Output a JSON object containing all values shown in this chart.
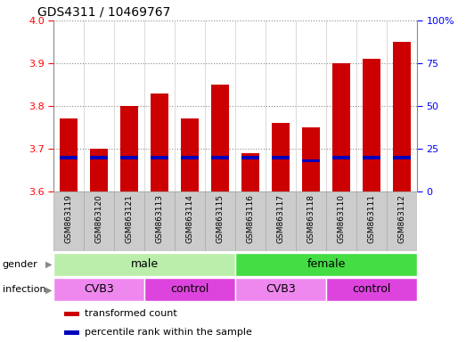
{
  "title": "GDS4311 / 10469767",
  "samples": [
    "GSM863119",
    "GSM863120",
    "GSM863121",
    "GSM863113",
    "GSM863114",
    "GSM863115",
    "GSM863116",
    "GSM863117",
    "GSM863118",
    "GSM863110",
    "GSM863111",
    "GSM863112"
  ],
  "transformed_counts": [
    3.77,
    3.7,
    3.8,
    3.83,
    3.77,
    3.85,
    3.69,
    3.76,
    3.75,
    3.9,
    3.91,
    3.95
  ],
  "percentile_ranks": [
    20,
    20,
    20,
    20,
    20,
    20,
    20,
    20,
    18,
    20,
    20,
    20
  ],
  "y_min": 3.6,
  "y_max": 4.0,
  "y_ticks": [
    3.6,
    3.7,
    3.8,
    3.9,
    4.0
  ],
  "right_y_ticks": [
    0,
    25,
    50,
    75,
    100
  ],
  "bar_color": "#cc0000",
  "percentile_color": "#0000bb",
  "gender_groups": [
    {
      "label": "male",
      "start": 0,
      "end": 6,
      "color": "#bbeeaa"
    },
    {
      "label": "female",
      "start": 6,
      "end": 12,
      "color": "#44dd44"
    }
  ],
  "infection_groups": [
    {
      "label": "CVB3",
      "start": 0,
      "end": 3,
      "color": "#ee88ee"
    },
    {
      "label": "control",
      "start": 3,
      "end": 6,
      "color": "#dd44dd"
    },
    {
      "label": "CVB3",
      "start": 6,
      "end": 9,
      "color": "#ee88ee"
    },
    {
      "label": "control",
      "start": 9,
      "end": 12,
      "color": "#dd44dd"
    }
  ],
  "legend_items": [
    {
      "label": "transformed count",
      "color": "#cc0000"
    },
    {
      "label": "percentile rank within the sample",
      "color": "#0000bb"
    }
  ],
  "xtick_bg_color": "#cccccc",
  "xtick_border_color": "#aaaaaa"
}
